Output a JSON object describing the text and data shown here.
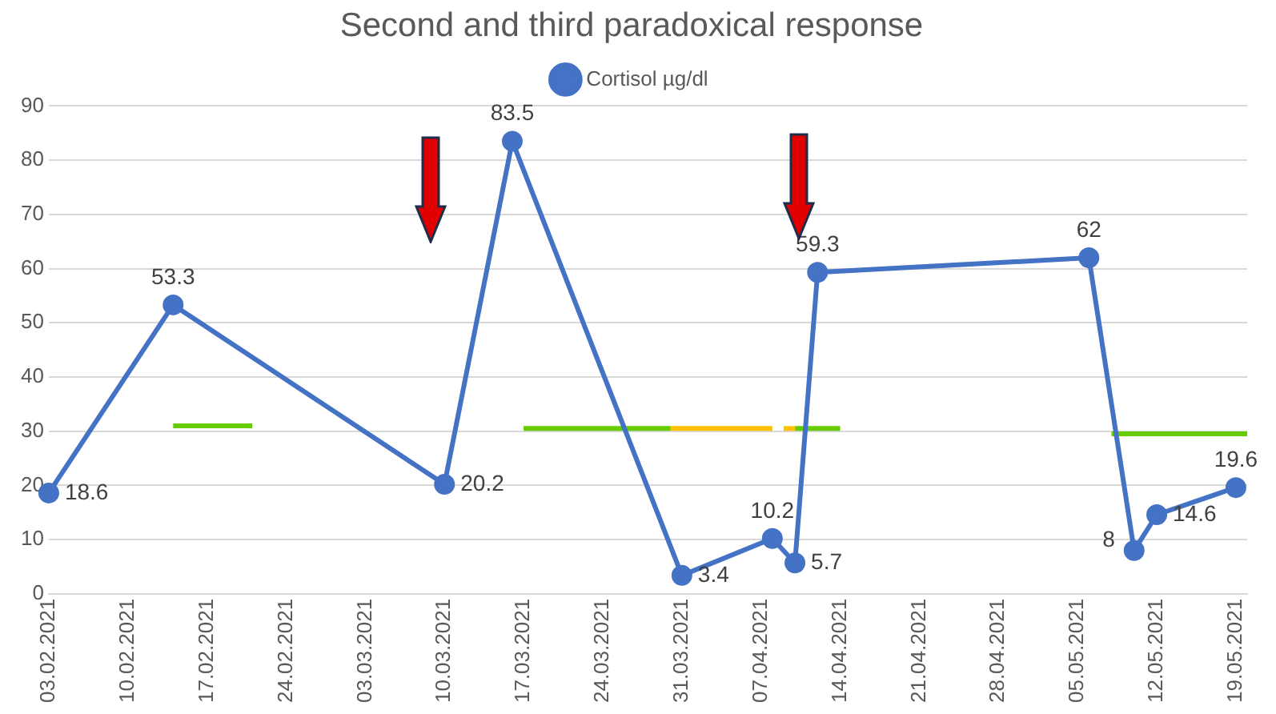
{
  "chart_data": {
    "type": "line",
    "title": "Second and third paradoxical response",
    "legend": "top",
    "grid": "y",
    "marker": "circle",
    "line_style": "solid",
    "xlim": [
      "2021-02-03",
      "2021-05-20"
    ],
    "xticks": [
      {
        "value": "2021-02-03",
        "label": "03.02.2021"
      },
      {
        "value": "2021-02-10",
        "label": "10.02.2021"
      },
      {
        "value": "2021-02-17",
        "label": "17.02.2021"
      },
      {
        "value": "2021-02-24",
        "label": "24.02.2021"
      },
      {
        "value": "2021-03-03",
        "label": "03.03.2021"
      },
      {
        "value": "2021-03-10",
        "label": "10.03.2021"
      },
      {
        "value": "2021-03-17",
        "label": "17.03.2021"
      },
      {
        "value": "2021-03-24",
        "label": "24.03.2021"
      },
      {
        "value": "2021-03-31",
        "label": "31.03.2021"
      },
      {
        "value": "2021-04-07",
        "label": "07.04.2021"
      },
      {
        "value": "2021-04-14",
        "label": "14.04.2021"
      },
      {
        "value": "2021-04-21",
        "label": "21.04.2021"
      },
      {
        "value": "2021-04-28",
        "label": "28.04.2021"
      },
      {
        "value": "2021-05-05",
        "label": "05.05.2021"
      },
      {
        "value": "2021-05-12",
        "label": "12.05.2021"
      },
      {
        "value": "2021-05-19",
        "label": "19.05.2021"
      }
    ],
    "ylim": [
      0,
      90
    ],
    "yticks": [
      0,
      10,
      20,
      30,
      40,
      50,
      60,
      70,
      80,
      90
    ],
    "series": [
      {
        "name": "Cortisol µg/dl",
        "color": "#4472c4",
        "x": [
          "2021-02-03",
          "2021-02-14",
          "2021-03-10",
          "2021-03-16",
          "2021-03-31",
          "2021-04-08",
          "2021-04-10",
          "2021-04-12",
          "2021-05-06",
          "2021-05-10",
          "2021-05-12",
          "2021-05-19"
        ],
        "values": [
          18.6,
          53.3,
          20.2,
          83.5,
          3.4,
          10.2,
          5.7,
          59.3,
          62,
          8,
          14.6,
          19.6
        ],
        "value_labels": [
          "18.6",
          "53.3",
          "20.2",
          "83.5",
          "3.4",
          "10.2",
          "5.7",
          "59.3",
          "62",
          "8",
          "14.6",
          "19.6"
        ]
      },
      {
        "color": "#66cc00",
        "marker": "none",
        "x": [
          "2021-02-14",
          "2021-02-21"
        ],
        "values": [
          31,
          31
        ]
      },
      {
        "color": "#66cc00",
        "marker": "none",
        "x": [
          "2021-03-17",
          "2021-03-30"
        ],
        "values": [
          30.5,
          30.5
        ]
      },
      {
        "color": "#ffc000",
        "marker": "none",
        "x": [
          "2021-03-30",
          "2021-04-08"
        ],
        "values": [
          30.5,
          30.5
        ]
      },
      {
        "color": "#ffc000",
        "marker": "none",
        "x": [
          "2021-04-09",
          "2021-04-10"
        ],
        "values": [
          30.5,
          30.5
        ]
      },
      {
        "color": "#66cc00",
        "marker": "none",
        "x": [
          "2021-04-10",
          "2021-04-14"
        ],
        "values": [
          30.5,
          30.5
        ]
      },
      {
        "color": "#66cc00",
        "marker": "none",
        "x": [
          "2021-05-08",
          "2021-05-20"
        ],
        "values": [
          29.5,
          29.5
        ]
      }
    ]
  }
}
